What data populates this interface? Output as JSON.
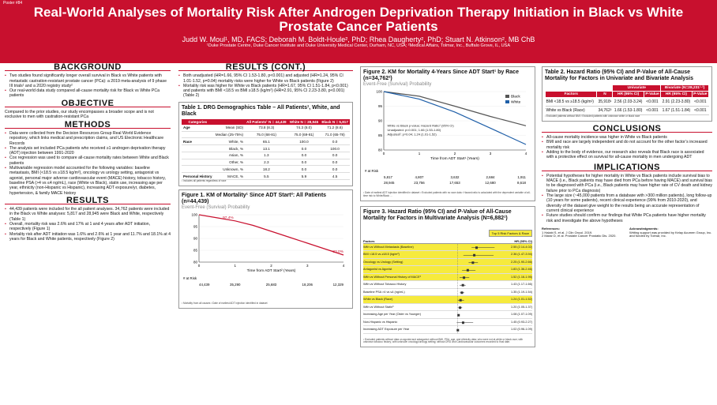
{
  "poster_number": "Poster #84",
  "title": "Real-World Analyses of Mortality Risk After Androgen Deprivation Therapy Initiation in Black vs White Prostate Cancer Patients",
  "authors": "Judd W. Moul¹, MD, FACS; Deborah M. Boldt-Houle², PhD; Rhea Daugherty², PhD; Stuart N. Atkinson², MB ChB",
  "affiliations": "¹Duke Prostate Centre, Duke Cancer Institute and Duke University Medical Center, Durham, NC, USA; ²Medical Affairs, Tolmar, Inc., Buffalo Grove, IL, USA",
  "background": {
    "heading": "BACKGROUND",
    "bullets": [
      "Two studies found significantly longer overall survival in Black vs White patients with metastatic castration-resistant prostate cancer (PCa): a 2019 meta-analysis of 9 phase III trials¹ and a 2020 registry study²",
      "Our real-world data study compared all-cause mortality risk for Black vs White PCa patients"
    ]
  },
  "objective": {
    "heading": "OBJECTIVE",
    "text": "Compared to the prior studies, our study encompasses a broader scope and is not exclusive to men with castration-resistant PCa"
  },
  "methods": {
    "heading": "METHODS",
    "bullets": [
      "Data were collected from the Decision Resources Group Real World Evidence repository, which links medical and prescription claims, and US Electronic Healthcare Records",
      "The analysis set included PCa patients who received ≥1 androgen deprivation therapy (ADT) injection between 1991-2020",
      "Cox regression was used to compare all-cause mortality rates between White and Black patients",
      "Multivariable regression model accounted for the following variables: baseline metastasis, BMI (<18.5 vs ≥18.5 kg/m²), oncology vs urology setting, antagonist vs agonist, personal major adverse cardiovascular event (MACE) history, tobacco history, baseline PSA (>4 vs ≤4 ng/mL), race (White vs Black), statin use, increasing age per year, ethnicity (non-Hispanic vs Hispanic), increasing ADT exposure/yr, diabetes, hypertension, & family MACE history"
    ]
  },
  "results": {
    "heading": "RESULTS",
    "bullets": [
      "44,439 patients were included for the all patient analyses. 34,762 patients were included in the Black vs White analyses: 5,817 and 28,945 were Black and White, respectively (Table 1)",
      "Overall, mortality risk was 2.6% and 17% at 1 and 4 years after ADT initiation, respectively (Figure 1)",
      "Mortality risk after ADT initiation was 1.6% and 2.6% at 1 year and 11.7% and 18.1% at 4 years for Black and White patients, respectively (Figure 2)"
    ]
  },
  "results_cont": {
    "heading": "RESULTS (CONT.)",
    "bullets": [
      "Both unadjusted (HR=1.66, 95% CI 1.53-1.80, p<0.001) and adjusted (HR=1.24, 95% CI 1.01-1.52, p=0.04) mortality risks were higher for White vs Black patients (Figure 2)",
      "Mortality risk was higher for White vs Black patients (HR=1.67, 95% CI 1.51-1.84, p<0.001) and patients with BMI <18.5 vs BMI ≥18.5 (kg/m²) (HR=2.91, 95% CI 2.23-3.80, p<0.001) (Table 2)"
    ]
  },
  "table1": {
    "title": "Table 1. DRG Demographics Table – All Patients¹, White, and Black",
    "headers": [
      "Categories",
      "",
      "All Patients¹ N = 44,439",
      "White N = 28,945",
      "Black N = 5,817"
    ],
    "rows": [
      [
        "Age",
        "Mean (SD)",
        "73.8 (8.3)",
        "74.3 (8.0)",
        "71.2 (8.6)"
      ],
      [
        "",
        "Median (25-75%)",
        "75.0 (68-81)",
        "75.0 (69-81)",
        "71.0 (65-78)"
      ],
      [
        "Race",
        "White, %",
        "65.1",
        "100.0",
        "0.0"
      ],
      [
        "",
        "Black, %",
        "13.1",
        "0.0",
        "100.0"
      ],
      [
        "",
        "Asian, %",
        "1.3",
        "0.0",
        "0.0"
      ],
      [
        "",
        "Other, %",
        "2.3",
        "0.0",
        "0.0"
      ],
      [
        "",
        "Unknown, %",
        "18.2",
        "0.0",
        "0.0"
      ],
      [
        "Personal History",
        "MACE, %",
        "5.5",
        "5.9",
        "4.5"
      ]
    ],
    "footnote": "¹ Includes all patients regardless of race"
  },
  "figure1": {
    "title": "Figure 1. KM of Mortality¹ Since ADT Start²: All Patients (n=44,439)",
    "subtitle": "Event-Free (Survival) Probability",
    "xlabel": "Time from ADT Start² (Years)",
    "risk_label": "# at Risk",
    "risk": [
      "44,439",
      "35,290",
      "25,683",
      "18,206",
      "12,329"
    ],
    "ann_start": "97.4%",
    "ann_end": "83.0%",
    "footnotes": "¹ Mortality from all causes  ² Date of earliest ADT injection identified in dataset"
  },
  "figure2": {
    "title": "Figure 2. KM for Mortality 4-Years Since ADT Start¹ by Race (n=34,762²)",
    "subtitle": "Event-Free (Survival) Probability",
    "xlabel": "Time from ADT Start¹ (Years)",
    "legend": [
      "Black",
      "White"
    ],
    "stats": [
      "White vs Black p-value; Hazard Ratio¹ (95% CI)",
      "Unadjusted: p<0.001; 1.66 (1.53-1.80)",
      "Adjusted²: p=0.04;  1.24 (1.01-1.52)"
    ],
    "risk_label": "# at Risk",
    "risk_black": [
      "5,817",
      "4,807",
      "3,632",
      "2,684",
      "1,911"
    ],
    "risk_white": [
      "28,945",
      "23,756",
      "17,653",
      "12,680",
      "8,618"
    ],
    "footnotes": "¹ Date of earliest ADT injection identified in dataset  ² Excluded patients with no race data  ³ Hazard ratio is calculated with the dependent variable of all-time risk to White/Black ..."
  },
  "figure3": {
    "title": "Figure 3. Hazard Ratio (95% CI) and P-Value of All-Cause Mortality for Factors in Multivariate Analysis (N=6,882¹)",
    "legend": "Top 5 Risk Factors & Race",
    "col_factors": "Factors",
    "col_hr": "HR (95% CI)",
    "rows": [
      [
        "With vs Without Metastasis (Baseline)",
        "2.55 (2.14-4.02)",
        true
      ],
      [
        "BMI <18.5 vs ≥18.5 (kg/m²)",
        "2.36 (1.47-3.94)",
        true
      ],
      [
        "Oncology vs Urology (Setting)",
        "2.25 (1.90-2.66)",
        true
      ],
      [
        "Antagonist vs Agonist",
        "1.83 (1.36-2.46)",
        true
      ],
      [
        "With vs Without Personal History of MACE³",
        "1.52 (1.16-1.95)",
        true
      ],
      [
        "With vs Without Tobacco History",
        "1.43 (1.17-1.66)",
        false
      ],
      [
        "Baseline PSA >4 vs ≤4 (ng/mL)",
        "1.35 (1.19-1.54)",
        false
      ],
      [
        "White vs Black (Race)",
        "1.24 (1.01-1.52)",
        true
      ],
      [
        "With vs Without Statin³",
        "1.20 (1.05-1.37)",
        false
      ],
      [
        "Increasing Age per Year (Older vs Younger)",
        "1.08 (1.07-1.09)",
        false
      ],
      [
        "Non-Hispanic vs Hispanic",
        "1.45 (0.93-2.27)",
        false
      ],
      [
        "Increasing ADT Exposure per Year",
        "1.02 (0.96-1.09)",
        false
      ]
    ],
    "footnotes": "¹ Excluded patients without data on agonist and antagonist; without BMI, PSA, age, and ethnicity data; who were not at white or black race; with unknown tobacco history; with unknown oncology/urology setting; without DRG and Cardiovascular outcomes recorded to final date."
  },
  "table2": {
    "title": "Table 2. Hazard Ratio (95% CI) and P-Value of All-Cause Mortality for Factors in Univariate and Bivariate Analysis",
    "group_univariate": "Univariate",
    "group_bivariate": "Bivariate (N=28,231¹·²)",
    "headers": [
      "Factors",
      "N",
      "HR (95% CI)",
      "P-Value",
      "HR (95% CI)",
      "P-Value"
    ],
    "rows": [
      [
        "BMI <18.5 vs ≥18.5 (kg/m²)",
        "35,918¹",
        "2.56 (2.03-3.24)",
        "<0.001",
        "2.91 (2.23-3.80)",
        "<0.001"
      ],
      [
        "White vs Black (Race)",
        "34,762²",
        "1.66 (1.53-1.80)",
        "<0.001",
        "1.67 (1.51-1.84)",
        "<0.001"
      ]
    ],
    "footnotes": "¹ Excluded patients without BMI  ² Excluded patients with unknown white or black race"
  },
  "conclusions": {
    "heading": "CONCLUSIONS",
    "bullets": [
      "All-cause mortality incidence was higher in White vs Black patients",
      "BMI and race are largely independent and do not account for the other factor’s increased mortality risk",
      "Adding to the body of evidence, our research also reveals that Black race is associated with a protective effect on survival for all-cause mortality in men undergoing ADT"
    ]
  },
  "implications": {
    "heading": "IMPLICATIONS",
    "bullets": [
      "Potential hypotheses for higher mortality in White vs Black patients include survival bias to MACE (i.e., Black patients may have died from PCa before having MACE) and survival bias to be diagnosed with PCa (i.e., Black patients may have higher rate of CV death and kidney failure prior to PCa diagnosis)",
      "The large size (~45,000 patients from a database with >300 million patients), long follow-up (10 years for some patients), recent clinical experience (99% from 2010-2020), and diversity of the dataset give weight to the results being an accurate representation of current clinical experience",
      "Future studies should confirm our findings that White PCa patients have higher mortality risk and investigate the above hypotheses"
    ]
  },
  "references": {
    "heading": "References:",
    "items": [
      "1 Halabi S, et al. J Clin Oncol. 2019.",
      "2 Marar D, et al. Prostate Cancer Prostatic Dis. 2020."
    ]
  },
  "acknowledgments": {
    "heading": "Acknowledgments:",
    "text": "Writing support was provided by Kelay Acumen Group, Inc. and funded by Tolmar, Inc."
  },
  "chart_data": [
    {
      "type": "line",
      "title": "Figure 1. KM of Mortality Since ADT Start: All Patients (n=44,439)",
      "xlabel": "Time from ADT Start (Years)",
      "ylabel": "Event-Free (Survival) Probability",
      "xlim": [
        0,
        4
      ],
      "ylim": [
        80,
        100
      ],
      "yticks": [
        80,
        85,
        90,
        95,
        100
      ],
      "xticks": [
        0,
        1,
        2,
        3,
        4
      ],
      "series": [
        {
          "color": "#c8102e",
          "x": [
            0,
            0.5,
            1,
            1.5,
            2,
            2.5,
            3,
            3.5,
            4
          ],
          "y": [
            100,
            98.7,
            97.4,
            95.5,
            93.0,
            90.5,
            88.0,
            85.5,
            83.0
          ]
        }
      ]
    },
    {
      "type": "line",
      "title": "Figure 2. KM for Mortality 4-Years Since ADT Start by Race (n=34,762)",
      "xlabel": "Time from ADT Start (Years)",
      "ylabel": "Event-Free (Survival) Probability",
      "xlim": [
        0,
        4
      ],
      "ylim": [
        80,
        100
      ],
      "yticks": [
        80,
        85,
        90,
        95,
        100
      ],
      "xticks": [
        0,
        1,
        2,
        3,
        4
      ],
      "legend": "right",
      "series": [
        {
          "name": "Black",
          "color": "#555555",
          "x": [
            0,
            1,
            2,
            3,
            4
          ],
          "y": [
            100,
            98.4,
            95.0,
            91.5,
            88.3
          ]
        },
        {
          "name": "White",
          "color": "#1f5fa8",
          "x": [
            0,
            1,
            2,
            3,
            4
          ],
          "y": [
            100,
            97.4,
            93.0,
            87.5,
            81.9
          ]
        }
      ]
    }
  ],
  "colors": {
    "brand": "#c8102e",
    "black_series": "#555555",
    "white_series": "#1f5fa8",
    "highlight": "#f6ea3d"
  }
}
